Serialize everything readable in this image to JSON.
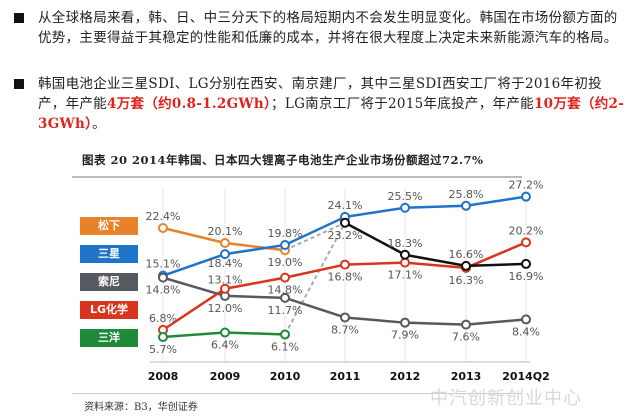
{
  "paragraphs": [
    {
      "segments": [
        {
          "text": "从全球格局来看，韩、日、中三分天下的格局短期内不会发生明显变化。韩国在市场份额方面的优势，主要得益于其稳定的性能和低廉的成本，并将在很大程度上决定未来新能源汽车的格局。",
          "red": false
        }
      ]
    },
    {
      "segments": [
        {
          "text": "韩国电池企业三星SDI、LG分别在西安、南京建厂，其中三星SDI西安工厂将于2016年初投产，年产能",
          "red": false
        },
        {
          "text": "4万套（约0.8-1.2GWh）",
          "red": true
        },
        {
          "text": "；LG南京工厂将于2015年底投产，年产能",
          "red": false
        },
        {
          "text": "10万套（约2-3GWh）",
          "red": true
        },
        {
          "text": "。",
          "red": false
        }
      ]
    }
  ],
  "figure_title": "图表 20  2014年韩国、日本四大锂离子电池生产企业市场份额超过72.7%",
  "source": "资料来源：B3，华创证券",
  "watermark": "中汽创新创业中心",
  "chart_data": {
    "type": "line",
    "categories": [
      "2008",
      "2009",
      "2010",
      "2011",
      "2012",
      "2013",
      "2014Q2"
    ],
    "unit": "%",
    "legend_placement": "left",
    "grid": "vertical",
    "series": [
      {
        "name": "松下",
        "color": "#e8822a",
        "values": [
          22.4,
          20.1,
          19.0,
          null,
          null,
          null,
          null
        ]
      },
      {
        "name": "三星",
        "color": "#1f73c8",
        "values": [
          15.1,
          18.4,
          19.8,
          24.1,
          25.5,
          25.8,
          27.2
        ]
      },
      {
        "name": "索尼",
        "color": "#555a60",
        "values": [
          14.8,
          12.0,
          11.7,
          8.7,
          7.9,
          7.6,
          8.4
        ]
      },
      {
        "name": "LG化学",
        "color": "#d9341e",
        "values": [
          6.8,
          13.1,
          14.8,
          16.8,
          17.1,
          16.3,
          20.2
        ]
      },
      {
        "name": "三洋",
        "color": "#1e8a3a",
        "values": [
          5.7,
          6.4,
          6.1,
          null,
          null,
          null,
          null
        ]
      },
      {
        "color": "#111111",
        "values": [
          null,
          null,
          null,
          23.2,
          18.3,
          16.6,
          16.9
        ]
      }
    ],
    "labels": {
      "松下": [
        "22.4%",
        "20.1%",
        "19.0%"
      ],
      "三星": [
        "15.1%",
        "18.4%",
        "19.8%",
        "24.1%",
        "25.5%",
        "25.8%",
        "27.2%"
      ],
      "索尼": [
        "14.8%",
        "12.0%",
        "11.7%",
        "8.7%",
        "7.9%",
        "7.6%",
        "8.4%"
      ],
      "LG化学": [
        "6.8%",
        "13.1%",
        "14.8%",
        "16.8%",
        "17.1%",
        "16.3%",
        "20.2%"
      ],
      "三洋": [
        "5.7%",
        "6.4%",
        "6.1%"
      ],
      "merged": [
        "23.2%",
        "18.3%",
        "16.6%",
        "16.9%"
      ]
    }
  }
}
